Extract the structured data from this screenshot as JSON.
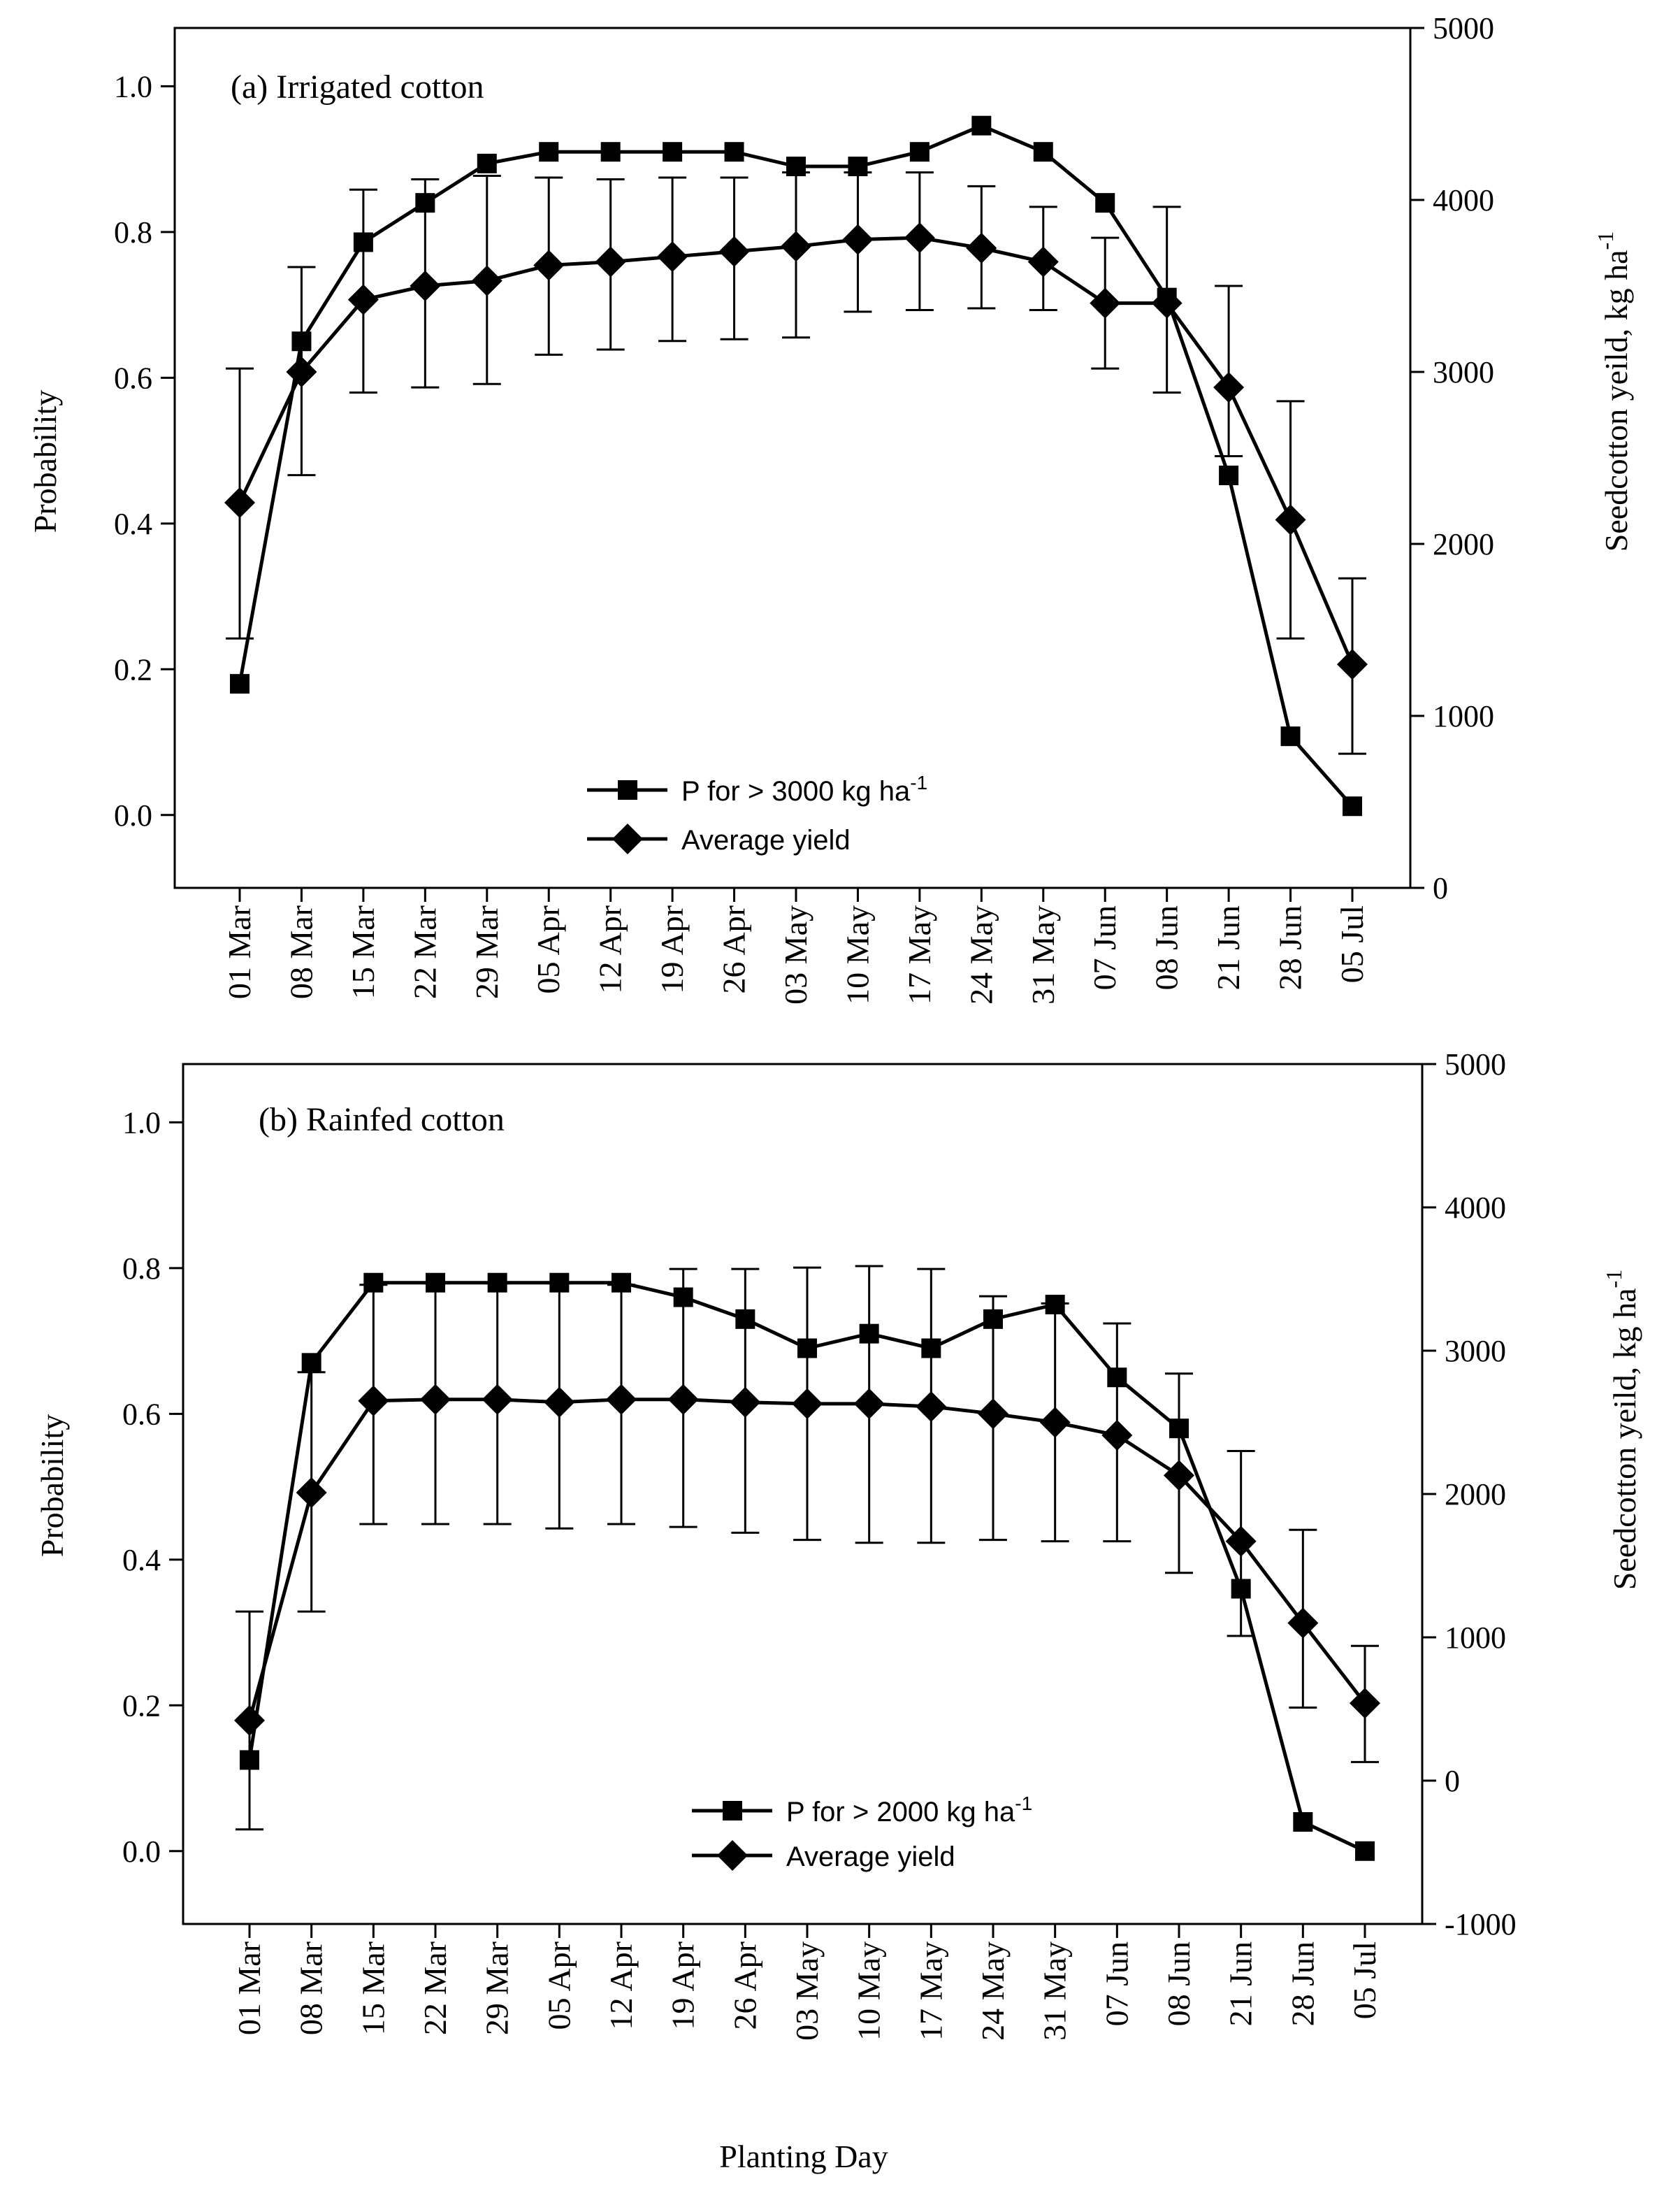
{
  "colors": {
    "ink": "#000000",
    "background": "#ffffff"
  },
  "figure": {
    "xlabel": "Planting Day"
  },
  "chart_data": [
    {
      "type": "line",
      "title": "(a) Irrigated cotton",
      "xlabel": "Planting Day",
      "ylabel": "Probability",
      "y2label": "Seedcotton yeild, kg ha",
      "y2label_sup": "-1",
      "ylim": [
        -0.1,
        1.08
      ],
      "y2lim": [
        0,
        5000
      ],
      "yticks": [
        "0.0",
        "0.2",
        "0.4",
        "0.6",
        "0.8",
        "1.0"
      ],
      "y2ticks": [
        "0",
        "1000",
        "2000",
        "3000",
        "4000",
        "5000"
      ],
      "categories": [
        "01 Mar",
        "08 Mar",
        "15 Mar",
        "22 Mar",
        "29 Mar",
        "05 Apr",
        "12 Apr",
        "19 Apr",
        "26 Apr",
        "03 May",
        "10 May",
        "17 May",
        "24 May",
        "31 May",
        "07 Jun",
        "08 Jun",
        "21 Jun",
        "28 Jun",
        "05 Jul"
      ],
      "series": [
        {
          "name": "P for > 3000 kg ha",
          "name_sup": "-1",
          "marker": "square",
          "axis": "left",
          "values": [
            0.18,
            0.65,
            0.786,
            0.84,
            0.894,
            0.91,
            0.91,
            0.91,
            0.91,
            0.89,
            0.89,
            0.91,
            0.946,
            0.91,
            0.84,
            0.71,
            0.466,
            0.108,
            0.012
          ]
        },
        {
          "name": "Average yield",
          "marker": "diamond",
          "axis": "right",
          "values": [
            2240,
            3000,
            3420,
            3500,
            3530,
            3620,
            3640,
            3670,
            3700,
            3730,
            3770,
            3780,
            3720,
            3640,
            3400,
            3400,
            2910,
            2140,
            1300
          ],
          "error_low": [
            1450,
            2400,
            2880,
            2910,
            2930,
            3100,
            3130,
            3180,
            3190,
            3200,
            3350,
            3360,
            3370,
            3360,
            3020,
            2880,
            2510,
            1450,
            780
          ],
          "error_high": [
            3020,
            3610,
            4060,
            4120,
            4140,
            4130,
            4120,
            4130,
            4130,
            4160,
            4160,
            4160,
            4080,
            3960,
            3780,
            3960,
            3500,
            2830,
            1800
          ]
        }
      ],
      "legend": "bottom-center"
    },
    {
      "type": "line",
      "title": "(b) Rainfed cotton",
      "xlabel": "Planting Day",
      "ylabel": "Probability",
      "y2label": "Seedcotton yeild, kg ha",
      "y2label_sup": "-1",
      "ylim": [
        -0.1,
        1.08
      ],
      "y2lim": [
        -1000,
        5000
      ],
      "yticks": [
        "0.0",
        "0.2",
        "0.4",
        "0.6",
        "0.8",
        "1.0"
      ],
      "y2ticks": [
        "-1000",
        "0",
        "1000",
        "2000",
        "3000",
        "4000",
        "5000"
      ],
      "categories": [
        "01 Mar",
        "08 Mar",
        "15 Mar",
        "22 Mar",
        "29 Mar",
        "05 Apr",
        "12 Apr",
        "19 Apr",
        "26 Apr",
        "03 May",
        "10 May",
        "17 May",
        "24 May",
        "31 May",
        "07 Jun",
        "08 Jun",
        "21 Jun",
        "28 Jun",
        "05 Jul"
      ],
      "series": [
        {
          "name": "P for > 2000 kg ha",
          "name_sup": "-1",
          "marker": "square",
          "axis": "left",
          "values": [
            0.125,
            0.67,
            0.78,
            0.78,
            0.78,
            0.78,
            0.78,
            0.76,
            0.73,
            0.69,
            0.71,
            0.69,
            0.73,
            0.75,
            0.65,
            0.58,
            0.36,
            0.04,
            0.0
          ]
        },
        {
          "name": "Average yield",
          "marker": "diamond",
          "axis": "right",
          "values": [
            420,
            2010,
            2650,
            2660,
            2660,
            2640,
            2660,
            2660,
            2640,
            2630,
            2630,
            2610,
            2560,
            2500,
            2410,
            2130,
            1670,
            1100,
            540
          ],
          "error_low": [
            -340,
            1180,
            1790,
            1790,
            1790,
            1760,
            1790,
            1770,
            1730,
            1680,
            1660,
            1660,
            1680,
            1670,
            1670,
            1450,
            1010,
            510,
            130
          ],
          "error_high": [
            1180,
            2850,
            3460,
            3470,
            3470,
            3470,
            3460,
            3570,
            3570,
            3580,
            3590,
            3570,
            3380,
            3330,
            3190,
            2840,
            2300,
            1750,
            940
          ]
        }
      ],
      "legend": "bottom-center"
    }
  ]
}
